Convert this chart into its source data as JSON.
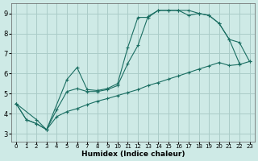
{
  "xlabel": "Humidex (Indice chaleur)",
  "bg_color": "#ceeae6",
  "grid_color": "#aaccc8",
  "line_color": "#1a6e62",
  "xlim": [
    -0.5,
    23.5
  ],
  "ylim": [
    2.6,
    9.5
  ],
  "xticks": [
    0,
    1,
    2,
    3,
    4,
    5,
    6,
    7,
    8,
    9,
    10,
    11,
    12,
    13,
    14,
    15,
    16,
    17,
    18,
    19,
    20,
    21,
    22,
    23
  ],
  "yticks": [
    3,
    4,
    5,
    6,
    7,
    8,
    9
  ],
  "line1_x": [
    0,
    1,
    2,
    3,
    5,
    6,
    7,
    8,
    9,
    10,
    11,
    12,
    13,
    14,
    15,
    16,
    17,
    18,
    19,
    20,
    21,
    22
  ],
  "line1_y": [
    4.5,
    3.7,
    3.5,
    3.2,
    5.7,
    6.3,
    5.2,
    5.15,
    5.25,
    5.5,
    7.3,
    8.8,
    8.8,
    9.15,
    9.15,
    9.15,
    8.9,
    9.0,
    8.9,
    8.5,
    7.7,
    6.5
  ],
  "line2_x": [
    0,
    1,
    2,
    3,
    4,
    5,
    6,
    7,
    8,
    9,
    10,
    11,
    12,
    13,
    14,
    15,
    16,
    17,
    18,
    19,
    20,
    21,
    22,
    23
  ],
  "line2_y": [
    4.5,
    3.7,
    3.5,
    3.2,
    4.2,
    5.1,
    5.25,
    5.1,
    5.1,
    5.2,
    5.4,
    6.5,
    7.4,
    8.85,
    9.15,
    9.15,
    9.15,
    9.15,
    9.0,
    8.9,
    8.5,
    7.7,
    7.55,
    6.6
  ],
  "line3_x": [
    0,
    2,
    3,
    4,
    5,
    6,
    7,
    8,
    9,
    10,
    11,
    12,
    13,
    14,
    15,
    16,
    17,
    18,
    19,
    20,
    21,
    22,
    23
  ],
  "line3_y": [
    4.5,
    3.7,
    3.2,
    3.85,
    4.1,
    4.25,
    4.45,
    4.62,
    4.75,
    4.9,
    5.05,
    5.2,
    5.4,
    5.55,
    5.72,
    5.88,
    6.05,
    6.22,
    6.38,
    6.55,
    6.4,
    6.45,
    6.6
  ]
}
